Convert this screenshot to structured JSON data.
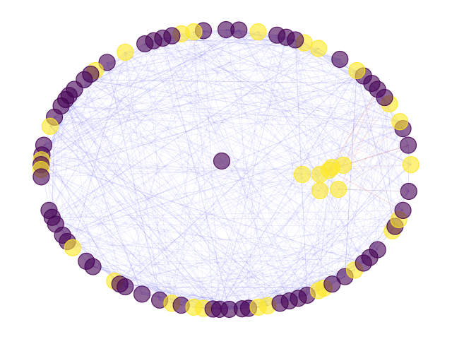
{
  "graph": {
    "layout": "circular",
    "colors": {
      "purple": "#440154",
      "yellow": "#fde725",
      "edge": "#3b3bf0",
      "edge_highlight": "#e0302a"
    },
    "ring_nodes": [
      {
        "id": "n1",
        "angle": 2,
        "group": "yellow"
      },
      {
        "id": "n2",
        "angle": 10,
        "group": "purple"
      },
      {
        "id": "n3",
        "angle": 17,
        "group": "purple"
      },
      {
        "id": "n4",
        "angle": 20,
        "group": "yellow"
      },
      {
        "id": "n5",
        "angle": 28,
        "group": "yellow"
      },
      {
        "id": "n6",
        "angle": 31,
        "group": "purple"
      },
      {
        "id": "n7",
        "angle": 35,
        "group": "purple"
      },
      {
        "id": "n8",
        "angle": 38,
        "group": "purple"
      },
      {
        "id": "n9",
        "angle": 42,
        "group": "purple"
      },
      {
        "id": "n10",
        "angle": 45,
        "group": "yellow"
      },
      {
        "id": "n11",
        "angle": 52,
        "group": "purple"
      },
      {
        "id": "n12",
        "angle": 60,
        "group": "yellow"
      },
      {
        "id": "n13",
        "angle": 65,
        "group": "yellow"
      },
      {
        "id": "n14",
        "angle": 68,
        "group": "purple"
      },
      {
        "id": "n15",
        "angle": 71,
        "group": "purple"
      },
      {
        "id": "n16",
        "angle": 74,
        "group": "purple"
      },
      {
        "id": "n17",
        "angle": 80,
        "group": "yellow"
      },
      {
        "id": "n18",
        "angle": 86,
        "group": "purple"
      },
      {
        "id": "n19",
        "angle": 90,
        "group": "purple"
      },
      {
        "id": "n20",
        "angle": 97,
        "group": "purple"
      },
      {
        "id": "n21",
        "angle": 100,
        "group": "yellow"
      },
      {
        "id": "n22",
        "angle": 104,
        "group": "yellow"
      },
      {
        "id": "n23",
        "angle": 107,
        "group": "purple"
      },
      {
        "id": "n24",
        "angle": 110,
        "group": "purple"
      },
      {
        "id": "n25",
        "angle": 113,
        "group": "purple"
      },
      {
        "id": "n26",
        "angle": 116,
        "group": "purple"
      },
      {
        "id": "n27",
        "angle": 123,
        "group": "yellow"
      },
      {
        "id": "n28",
        "angle": 130,
        "group": "purple"
      },
      {
        "id": "n29",
        "angle": 135,
        "group": "yellow"
      },
      {
        "id": "n30",
        "angle": 137,
        "group": "purple"
      },
      {
        "id": "n31",
        "angle": 140,
        "group": "purple"
      },
      {
        "id": "n32",
        "angle": 145,
        "group": "purple"
      },
      {
        "id": "n33",
        "angle": 148,
        "group": "purple"
      },
      {
        "id": "n34",
        "angle": 150,
        "group": "purple"
      },
      {
        "id": "n35",
        "angle": 153,
        "group": "purple"
      },
      {
        "id": "n36",
        "angle": 158,
        "group": "purple"
      },
      {
        "id": "n37",
        "angle": 162,
        "group": "yellow"
      },
      {
        "id": "n38",
        "angle": 170,
        "group": "purple"
      },
      {
        "id": "n39",
        "angle": 174,
        "group": "purple"
      },
      {
        "id": "n40",
        "angle": 176,
        "group": "yellow"
      },
      {
        "id": "n41",
        "angle": 178,
        "group": "purple"
      },
      {
        "id": "n42",
        "angle": 180,
        "group": "yellow"
      },
      {
        "id": "n43",
        "angle": 183,
        "group": "purple"
      },
      {
        "id": "n44",
        "angle": 197,
        "group": "purple"
      },
      {
        "id": "n45",
        "angle": 200,
        "group": "purple"
      },
      {
        "id": "n46",
        "angle": 203,
        "group": "purple"
      },
      {
        "id": "n47",
        "angle": 208,
        "group": "purple"
      },
      {
        "id": "n48",
        "angle": 211,
        "group": "purple"
      },
      {
        "id": "n49",
        "angle": 214,
        "group": "yellow"
      },
      {
        "id": "n50",
        "angle": 221,
        "group": "purple"
      },
      {
        "id": "n51",
        "angle": 224,
        "group": "purple"
      },
      {
        "id": "n52",
        "angle": 233,
        "group": "yellow"
      },
      {
        "id": "n53",
        "angle": 235,
        "group": "purple"
      },
      {
        "id": "n54",
        "angle": 237,
        "group": "purple"
      },
      {
        "id": "n55",
        "angle": 243,
        "group": "purple"
      },
      {
        "id": "n56",
        "angle": 249,
        "group": "purple"
      },
      {
        "id": "n57",
        "angle": 253,
        "group": "yellow"
      },
      {
        "id": "n58",
        "angle": 256,
        "group": "purple"
      },
      {
        "id": "n59",
        "angle": 260,
        "group": "yellow"
      },
      {
        "id": "n60",
        "angle": 263,
        "group": "yellow"
      },
      {
        "id": "n61",
        "angle": 266,
        "group": "purple"
      },
      {
        "id": "n62",
        "angle": 268,
        "group": "purple"
      },
      {
        "id": "n63",
        "angle": 271,
        "group": "purple"
      },
      {
        "id": "n64",
        "angle": 275,
        "group": "purple"
      },
      {
        "id": "n65",
        "angle": 277,
        "group": "purple"
      },
      {
        "id": "n66",
        "angle": 280,
        "group": "yellow"
      },
      {
        "id": "n67",
        "angle": 283,
        "group": "yellow"
      },
      {
        "id": "n68",
        "angle": 287,
        "group": "purple"
      },
      {
        "id": "n69",
        "angle": 290,
        "group": "purple"
      },
      {
        "id": "n70",
        "angle": 293,
        "group": "purple"
      },
      {
        "id": "n71",
        "angle": 296,
        "group": "purple"
      },
      {
        "id": "n72",
        "angle": 300,
        "group": "yellow"
      },
      {
        "id": "n73",
        "angle": 302,
        "group": "yellow"
      },
      {
        "id": "n74",
        "angle": 305,
        "group": "purple"
      },
      {
        "id": "n75",
        "angle": 310,
        "group": "purple"
      },
      {
        "id": "n76",
        "angle": 314,
        "group": "yellow"
      },
      {
        "id": "n77",
        "angle": 318,
        "group": "purple"
      },
      {
        "id": "n78",
        "angle": 321,
        "group": "purple"
      },
      {
        "id": "n79",
        "angle": 325,
        "group": "purple"
      },
      {
        "id": "n80",
        "angle": 334,
        "group": "yellow"
      },
      {
        "id": "n81",
        "angle": 336,
        "group": "purple"
      },
      {
        "id": "n82",
        "angle": 339,
        "group": "yellow"
      },
      {
        "id": "n83",
        "angle": 343,
        "group": "purple"
      },
      {
        "id": "n84",
        "angle": 351,
        "group": "purple"
      }
    ],
    "inner_nodes": [
      {
        "id": "c1",
        "group": "purple"
      },
      {
        "id": "k1",
        "group": "yellow"
      },
      {
        "id": "k2",
        "group": "yellow"
      },
      {
        "id": "k3",
        "group": "yellow"
      },
      {
        "id": "k4",
        "group": "yellow"
      },
      {
        "id": "k5",
        "group": "yellow"
      },
      {
        "id": "k6",
        "group": "yellow"
      },
      {
        "id": "k7",
        "group": "yellow"
      }
    ]
  }
}
